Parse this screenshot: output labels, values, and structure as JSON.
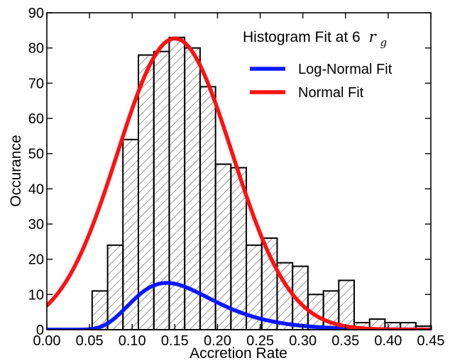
{
  "chart_data": {
    "type": "bar",
    "title": "",
    "xlabel": "Accretion Rate",
    "ylabel": "Occurance",
    "xlim": [
      0.0,
      0.45
    ],
    "ylim": [
      0,
      90
    ],
    "x_ticks": [
      "0.00",
      "0.05",
      "0.10",
      "0.15",
      "0.20",
      "0.25",
      "0.30",
      "0.35",
      "0.40",
      "0.45"
    ],
    "y_ticks": [
      "0",
      "10",
      "20",
      "30",
      "40",
      "50",
      "60",
      "70",
      "80",
      "90"
    ],
    "grid": false,
    "histogram": {
      "name": "",
      "bin_width": 0.01806,
      "bin_left_edges": [
        0.0531,
        0.0712,
        0.0892,
        0.1073,
        0.1254,
        0.1434,
        0.1615,
        0.1796,
        0.1976,
        0.2157,
        0.2338,
        0.2518,
        0.2699,
        0.2879,
        0.306,
        0.3241,
        0.3421,
        0.3602,
        0.3782,
        0.3963,
        0.4144,
        0.4324
      ],
      "counts": [
        11,
        24,
        54,
        78,
        79,
        83,
        80,
        69,
        47,
        46,
        24,
        26,
        19,
        18,
        10,
        11,
        14,
        2,
        3,
        2,
        2,
        1
      ],
      "fill": "#ffffff",
      "edge": "#000000",
      "hatch": "diagonal"
    },
    "legend": {
      "title_prefix": "Histogram Fit at 6",
      "title_symbol": "r",
      "title_subscript": "g",
      "placement": "top-right",
      "entries": [
        "Log-Normal Fit",
        "Normal Fit"
      ]
    },
    "series": [
      {
        "name": "Log-Normal Fit",
        "color": "#0a18ff",
        "model": "lognormal",
        "log_mean": -1.8478,
        "log_sigma": 0.3393,
        "scale": 1.68
      },
      {
        "name": "Normal Fit",
        "color": "#ff1111",
        "model": "normal",
        "mean": 0.15,
        "sigma": 0.0672,
        "peak": 82.7
      }
    ]
  }
}
